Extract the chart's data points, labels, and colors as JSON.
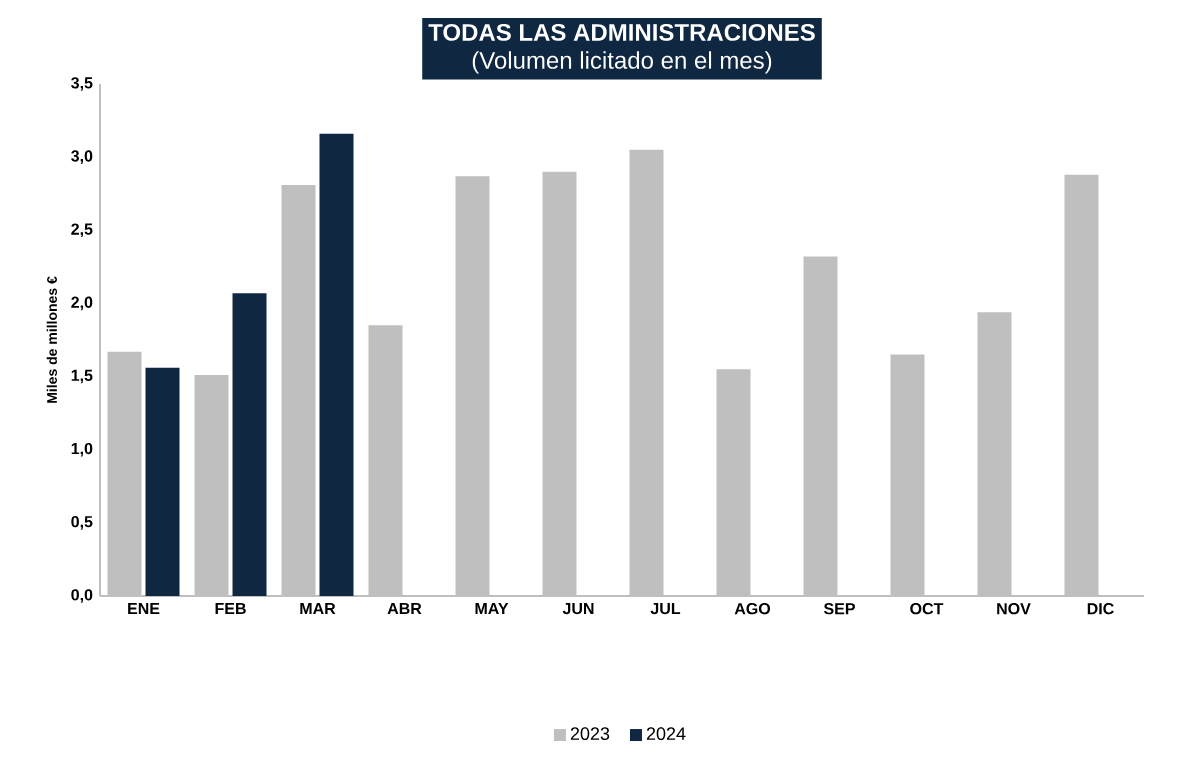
{
  "chart_data": {
    "type": "bar",
    "title": "TODAS  LAS ADMINISTRACIONES",
    "subtitle": "(Volumen licitado en el mes)",
    "ylabel": "Miles de millones €",
    "categories": [
      "ENE",
      "FEB",
      "MAR",
      "ABR",
      "MAY",
      "JUN",
      "JUL",
      "AGO",
      "SEP",
      "OCT",
      "NOV",
      "DIC"
    ],
    "series": [
      {
        "name": "2023",
        "color": "#bfbfbf",
        "values": [
          1.67,
          1.51,
          2.81,
          1.85,
          2.87,
          2.9,
          3.05,
          1.55,
          2.32,
          1.65,
          1.94,
          2.88
        ]
      },
      {
        "name": "2024",
        "color": "#0f2741",
        "values": [
          1.56,
          2.07,
          3.16,
          null,
          null,
          null,
          null,
          null,
          null,
          null,
          null,
          null
        ]
      }
    ],
    "ylim": [
      0,
      3.5
    ],
    "yticks": [
      {
        "value": 0,
        "label": "0,0"
      },
      {
        "value": 0.5,
        "label": "0,5"
      },
      {
        "value": 1,
        "label": "1,0"
      },
      {
        "value": 1.5,
        "label": "1,5"
      },
      {
        "value": 2,
        "label": "2,0"
      },
      {
        "value": 2.5,
        "label": "2,5"
      },
      {
        "value": 3,
        "label": "3,0"
      },
      {
        "value": 3.5,
        "label": "3,5"
      }
    ],
    "grid": false,
    "legend": "bottom"
  }
}
